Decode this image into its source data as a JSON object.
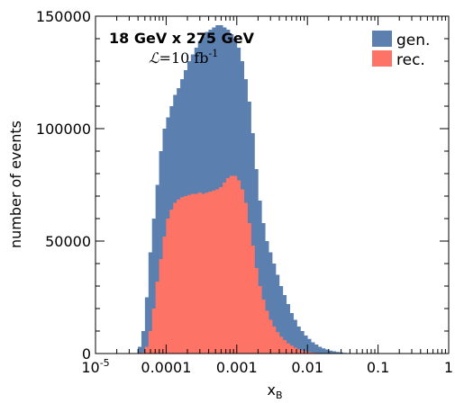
{
  "chart_data": {
    "type": "bar",
    "subtype": "overlaid-histogram",
    "title": "",
    "xlabel_main": "x",
    "xlabel_sub": "B",
    "ylabel": "number of events",
    "x_scale": "log",
    "xlim": [
      1e-05,
      1
    ],
    "ylim": [
      0,
      150000
    ],
    "grid": false,
    "legend_position": "top-right",
    "x_ticks": [
      {
        "value": 1e-05,
        "base": "10",
        "exp": "-5"
      },
      {
        "value": 0.0001,
        "label": "0.0001"
      },
      {
        "value": 0.001,
        "label": "0.001"
      },
      {
        "value": 0.01,
        "label": "0.01"
      },
      {
        "value": 0.1,
        "label": "0.1"
      },
      {
        "value": 1,
        "label": "1"
      }
    ],
    "y_ticks": [
      {
        "value": 0,
        "label": "0"
      },
      {
        "value": 50000,
        "label": "50000"
      },
      {
        "value": 100000,
        "label": "100000"
      },
      {
        "value": 150000,
        "label": "150000"
      }
    ],
    "annotations": {
      "beam": "18 GeV x 275 GeV",
      "lumi_symbol": "ℒ",
      "lumi_value": "=10 fb",
      "lumi_exp": "-1"
    },
    "bins_log10_start": -4.4,
    "bin_width_log10": 0.05,
    "series": [
      {
        "name": "gen.",
        "color": "#5b80b0",
        "values": [
          3000,
          10000,
          25000,
          45000,
          60000,
          75000,
          90000,
          100000,
          105000,
          110000,
          115000,
          118000,
          122000,
          126000,
          130000,
          133000,
          136000,
          139000,
          141000,
          143000,
          144000,
          145000,
          146000,
          146000,
          145000,
          144000,
          142000,
          140000,
          136000,
          130000,
          122000,
          112000,
          98000,
          82000,
          68000,
          58000,
          50000,
          45000,
          40000,
          35000,
          30000,
          26000,
          22000,
          18000,
          15000,
          12000,
          10000,
          8000,
          6500,
          5000,
          4000,
          3000,
          2300,
          1800,
          1300,
          1000,
          700,
          500,
          300,
          200,
          100
        ]
      },
      {
        "name": "rec.",
        "color": "#fd7466",
        "values": [
          0,
          500,
          3000,
          10000,
          20000,
          32000,
          42000,
          52000,
          60000,
          64000,
          67000,
          68500,
          69500,
          70000,
          70500,
          71000,
          71000,
          71500,
          71000,
          71500,
          72000,
          72500,
          73000,
          74000,
          76000,
          78000,
          79000,
          79000,
          77000,
          73000,
          67000,
          58000,
          48000,
          38000,
          30000,
          24000,
          19000,
          15000,
          12000,
          9500,
          7500,
          6000,
          4500,
          3500,
          2600,
          1900,
          1300,
          900,
          600,
          400,
          250,
          150,
          80,
          40,
          20,
          10,
          0,
          0,
          0,
          0,
          0
        ]
      }
    ]
  }
}
